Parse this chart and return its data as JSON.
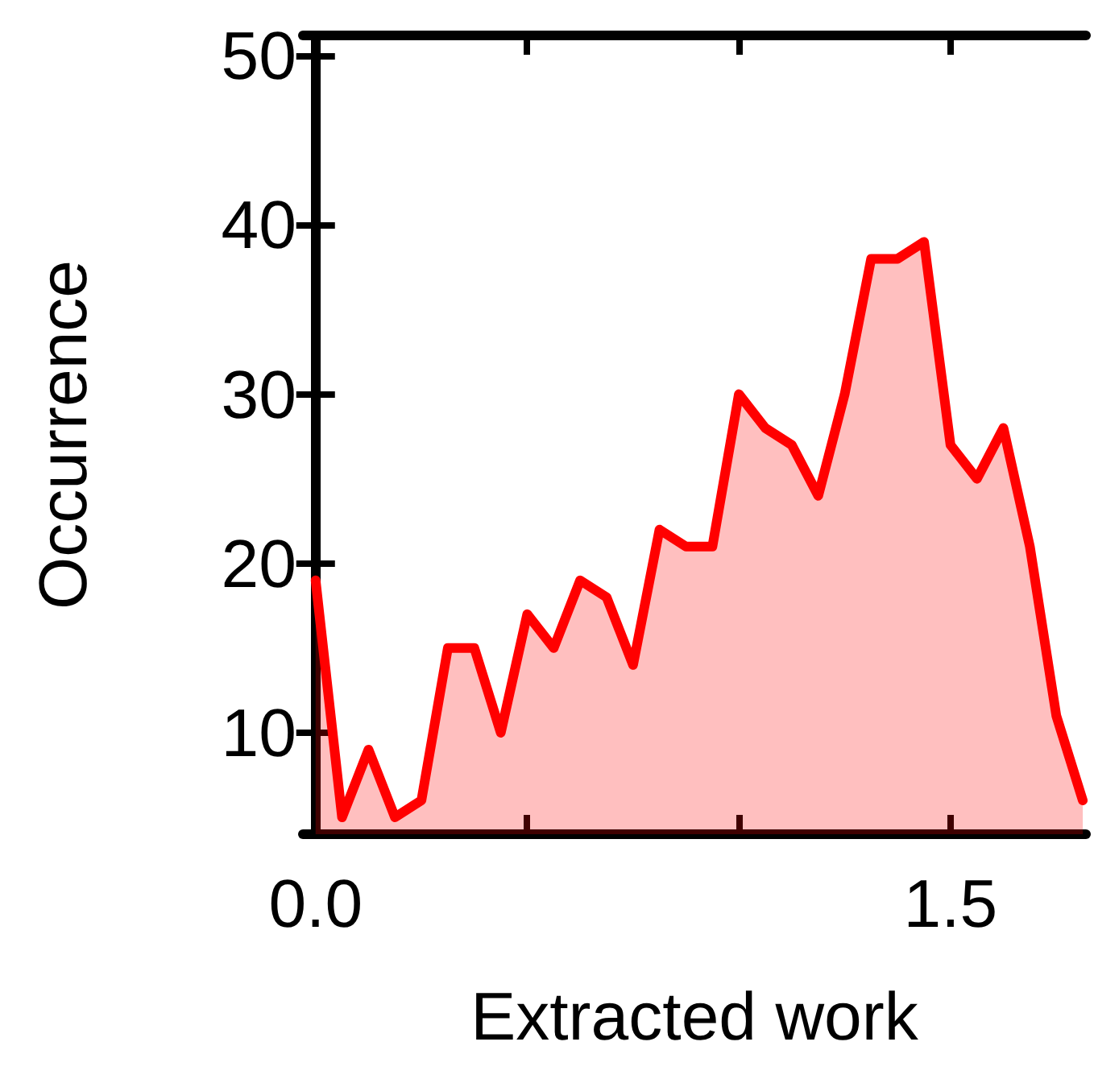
{
  "chart_data": {
    "type": "area",
    "xlabel": "Extracted work",
    "ylabel": "Occurrence",
    "x": [
      0,
      0.0625,
      0.125,
      0.1875,
      0.25,
      0.3125,
      0.375,
      0.4375,
      0.5,
      0.5625,
      0.625,
      0.6875,
      0.75,
      0.8125,
      0.875,
      0.9375,
      1,
      1.0625,
      1.125,
      1.1875,
      1.25,
      1.3125,
      1.375,
      1.4375,
      1.5,
      1.5625,
      1.625,
      1.6875,
      1.75,
      1.8125
    ],
    "series": [
      {
        "color": "#ff0000",
        "values": [
          19,
          5,
          9,
          5,
          6,
          15,
          15,
          10,
          17,
          15,
          19,
          18,
          14,
          22,
          21,
          21,
          30,
          28,
          27,
          24,
          30,
          38,
          38,
          39,
          27,
          25,
          28,
          21,
          11,
          6
        ]
      }
    ],
    "xlim": [
      -0.03,
      1.82
    ],
    "ylim": [
      4,
      51.2
    ],
    "xticks": [
      {
        "value": 0,
        "label": "0.0"
      },
      {
        "value": 0.5,
        "label": null
      },
      {
        "value": 1,
        "label": null
      },
      1.5
    ],
    "yticks": [
      10,
      20,
      30,
      40,
      50
    ],
    "marker": "none",
    "line_style": "solid"
  }
}
